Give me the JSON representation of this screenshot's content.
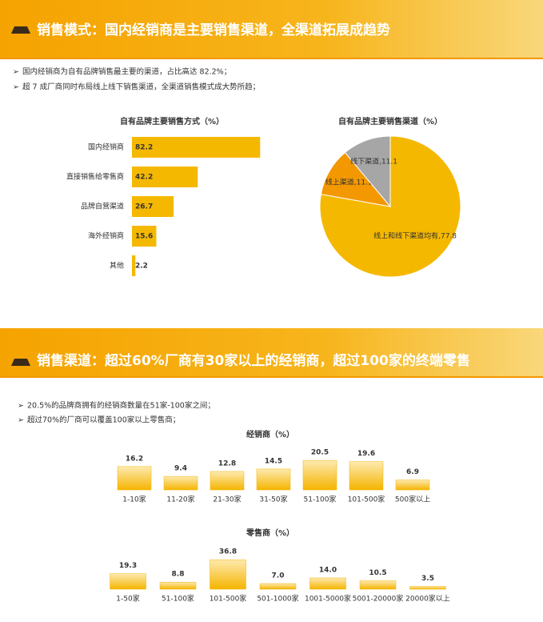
{
  "slides": [
    {
      "title": "销售模式：国内经销商是主要销售渠道，全渠道拓展成趋势",
      "bullets": [
        "国内经销商为自有品牌销售最主要的渠道，占比高达 82.2%；",
        "超 7 成厂商同时布局线上线下销售渠道，全渠道销售模式成大势所趋；"
      ]
    },
    {
      "title": "销售渠道：超过60%厂商有30家以上的经销商，超过100家的终端零售",
      "bullets": [
        "20.5%的品牌商拥有的经销商数量在51家-100家之间；",
        "超过70%的厂商可以覆盖100家以上零售商；"
      ]
    }
  ],
  "chart_data": [
    {
      "type": "bar",
      "orientation": "horizontal",
      "title": "自有品牌主要销售方式（%）",
      "categories": [
        "国内经销商",
        "直接销售给零售商",
        "品牌自营渠道",
        "海外经销商",
        "其他"
      ],
      "values": [
        82.2,
        42.2,
        26.7,
        15.6,
        2.2
      ],
      "color": "#f5b800"
    },
    {
      "type": "pie",
      "title": "自有品牌主要销售渠道（%）",
      "values": [
        77.8,
        11.1,
        11.1
      ],
      "value_labels": [
        "线上和线下渠道均有,77.8",
        "线上渠道,11.1",
        "线下渠道,11.1"
      ],
      "colors": [
        "#f5b800",
        "#f39800",
        "#a6a6a6"
      ]
    },
    {
      "type": "bar",
      "orientation": "vertical",
      "title": "经销商（%）",
      "categories": [
        "1-10家",
        "11-20家",
        "21-30家",
        "31-50家",
        "51-100家",
        "101-500家",
        "500家以上"
      ],
      "values": [
        16.2,
        9.4,
        12.8,
        14.5,
        20.5,
        19.6,
        6.9
      ],
      "label_colors": [
        "#333333",
        "#333333",
        "#333333",
        "#333333",
        "#e60012",
        "#333333",
        "#333333"
      ]
    },
    {
      "type": "bar",
      "orientation": "vertical",
      "title": "零售商（%）",
      "categories": [
        "1-50家",
        "51-100家",
        "101-500家",
        "501-1000家",
        "1001-5000家",
        "5001-20000家",
        "20000家以上"
      ],
      "values": [
        19.3,
        8.8,
        36.8,
        7.0,
        14.0,
        10.5,
        3.5
      ],
      "value_labels": [
        "19.3",
        "8.8",
        "36.8",
        "7.0",
        "14.0",
        "10.5",
        "3.5"
      ],
      "label_colors": [
        "#333333",
        "#333333",
        "#e60012",
        "#333333",
        "#333333",
        "#333333",
        "#333333"
      ]
    }
  ]
}
